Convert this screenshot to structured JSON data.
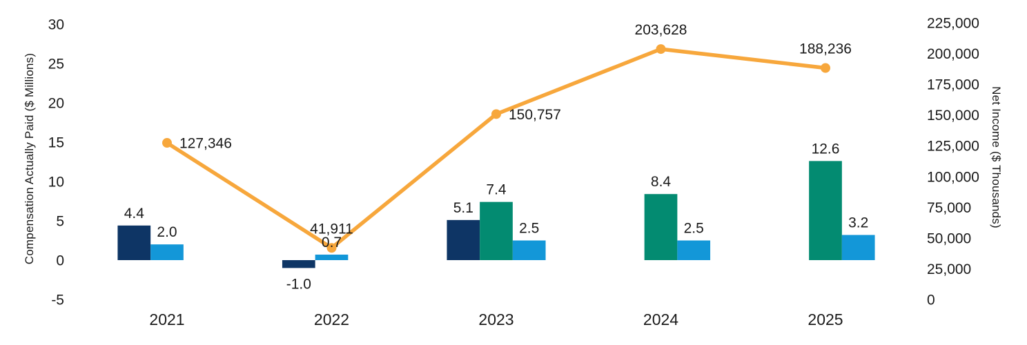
{
  "chart_data": {
    "type": "combo-bar-line",
    "title": "",
    "background": "#ffffff",
    "text_color": "#191919",
    "grid": false,
    "categories": [
      "2021",
      "2022",
      "2023",
      "2024",
      "2025"
    ],
    "left_axis": {
      "title": "Compensation Actually Paid ($ Millions)",
      "ticks": [
        30,
        25,
        20,
        15,
        10,
        5,
        0,
        -5
      ],
      "range": [
        -5,
        30
      ]
    },
    "right_axis": {
      "title": "Net Income ($ Thousands)",
      "ticks": [
        "225,000",
        "200,000",
        "175,000",
        "150,000",
        "125,000",
        "100,000",
        "75,000",
        "50,000",
        "25,000",
        "0"
      ],
      "range": [
        0,
        225000
      ]
    },
    "bar_series": [
      {
        "id": "bar-series-dark-blue",
        "color": "#0e3565"
      },
      {
        "id": "bar-series-teal",
        "color": "#038b71"
      },
      {
        "id": "bar-series-light-blue",
        "color": "#1397d8"
      }
    ],
    "bars": [
      {
        "category": "2021",
        "items": [
          {
            "series": 0,
            "value": 4.4,
            "label": "4.4",
            "slot": -1
          },
          {
            "series": 2,
            "value": 2.0,
            "label": "2.0",
            "slot": 0
          }
        ]
      },
      {
        "category": "2022",
        "items": [
          {
            "series": 0,
            "value": -1.0,
            "label": "-1.0",
            "slot": -1
          },
          {
            "series": 2,
            "value": 0.7,
            "label": "0.7",
            "slot": 0
          }
        ]
      },
      {
        "category": "2023",
        "items": [
          {
            "series": 0,
            "value": 5.1,
            "label": "5.1",
            "slot": -1
          },
          {
            "series": 1,
            "value": 7.4,
            "label": "7.4",
            "slot": 0
          },
          {
            "series": 2,
            "value": 2.5,
            "label": "2.5",
            "slot": 1
          }
        ]
      },
      {
        "category": "2024",
        "items": [
          {
            "series": 1,
            "value": 8.4,
            "label": "8.4",
            "slot": 0
          },
          {
            "series": 2,
            "value": 2.5,
            "label": "2.5",
            "slot": 1
          }
        ]
      },
      {
        "category": "2025",
        "items": [
          {
            "series": 1,
            "value": 12.6,
            "label": "12.6",
            "slot": 0
          },
          {
            "series": 2,
            "value": 3.2,
            "label": "3.2",
            "slot": 1
          }
        ]
      }
    ],
    "line": {
      "id": "net-income-line",
      "color": "#f7a73c",
      "axis": "right",
      "points": [
        {
          "category": "2021",
          "value": 127346,
          "label": "127,346",
          "label_pos": "right"
        },
        {
          "category": "2022",
          "value": 41911,
          "label": "41,911",
          "label_pos": "above"
        },
        {
          "category": "2023",
          "value": 150757,
          "label": "150,757",
          "label_pos": "right"
        },
        {
          "category": "2024",
          "value": 203628,
          "label": "203,628",
          "label_pos": "above"
        },
        {
          "category": "2025",
          "value": 188236,
          "label": "188,236",
          "label_pos": "above"
        }
      ]
    }
  }
}
